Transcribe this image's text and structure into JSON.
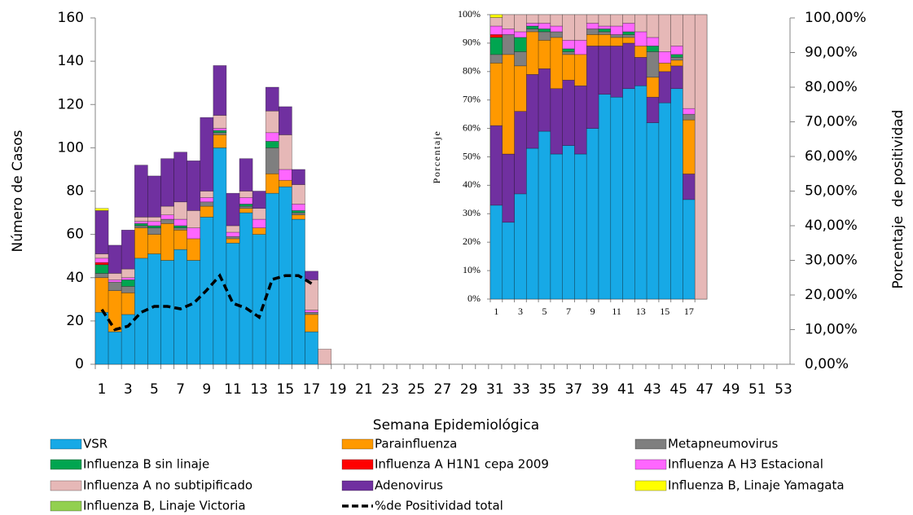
{
  "chart_data": [
    {
      "type": "bar",
      "stacked": true,
      "xlabel": "Semana Epidemiológica",
      "ylabel": "Número de Casos",
      "y2label": "Porcentaje  de positividad",
      "legend": "bottom",
      "categories": [
        1,
        null,
        3,
        null,
        5,
        null,
        7,
        null,
        9,
        null,
        11,
        null,
        13,
        null,
        15,
        null,
        17,
        null,
        19,
        null,
        21,
        null,
        23,
        null,
        25,
        null,
        27,
        null,
        29,
        null,
        31,
        null,
        33,
        null,
        35,
        null,
        37,
        null,
        39,
        null,
        41,
        null,
        43,
        null,
        45,
        null,
        47,
        null,
        49,
        null,
        51,
        null,
        53
      ],
      "ylim": [
        0,
        160
      ],
      "yticks": [
        0,
        20,
        40,
        60,
        80,
        100,
        120,
        140,
        160
      ],
      "y2lim": [
        0,
        100
      ],
      "y2ticks": [
        {
          "value": 0,
          "label": "0,00%"
        },
        {
          "value": 10,
          "label": "10,00%"
        },
        {
          "value": 20,
          "label": "20,00%"
        },
        {
          "value": 30,
          "label": "30,00%"
        },
        {
          "value": 40,
          "label": "40,00%"
        },
        {
          "value": 50,
          "label": "50,00%"
        },
        {
          "value": 60,
          "label": "60,00%"
        },
        {
          "value": 70,
          "label": "70,00%"
        },
        {
          "value": 80,
          "label": "80,00%"
        },
        {
          "value": 90,
          "label": "90,00%"
        },
        {
          "value": 100,
          "label": "100,00%"
        }
      ],
      "series": [
        {
          "name": "VSR",
          "color": "#17a9e6",
          "values": [
            24,
            15,
            23,
            49,
            51,
            48,
            53,
            48,
            68,
            100,
            56,
            70,
            60,
            79,
            82,
            67,
            15,
            0,
            null,
            null,
            null,
            null,
            null,
            null,
            null,
            null,
            null,
            null,
            null,
            null,
            null,
            null,
            null,
            null,
            null,
            null,
            null,
            null,
            null,
            null,
            null,
            null,
            null,
            null,
            null,
            null,
            null,
            null,
            null,
            null,
            null,
            null,
            null
          ]
        },
        {
          "name": "Parainfluenza",
          "color": "#ff9900",
          "values": [
            16,
            19,
            10,
            14,
            9,
            17,
            9,
            10,
            5,
            6,
            2,
            2,
            3,
            9,
            3,
            2,
            8,
            0,
            null,
            null,
            null,
            null,
            null,
            null,
            null,
            null,
            null,
            null,
            null,
            null,
            null,
            null,
            null,
            null,
            null,
            null,
            null,
            null,
            null,
            null,
            null,
            null,
            null,
            null,
            null,
            null,
            null,
            null,
            null,
            null,
            null,
            null,
            null
          ]
        },
        {
          "name": "Metapneumovirus",
          "color": "#7f7f7f",
          "values": [
            2,
            4,
            3,
            1,
            3,
            2,
            1,
            0,
            2,
            1,
            1,
            1,
            0,
            12,
            0,
            1,
            1,
            0,
            null,
            null,
            null,
            null,
            null,
            null,
            null,
            null,
            null,
            null,
            null,
            null,
            null,
            null,
            null,
            null,
            null,
            null,
            null,
            null,
            null,
            null,
            null,
            null,
            null,
            null,
            null,
            null,
            null,
            null,
            null,
            null,
            null,
            null,
            null
          ]
        },
        {
          "name": "Influenza B sin linaje",
          "color": "#00a550",
          "values": [
            4,
            0,
            3,
            1,
            1,
            0,
            1,
            0,
            0,
            1,
            0,
            1,
            0,
            3,
            0,
            1,
            0,
            0,
            null,
            null,
            null,
            null,
            null,
            null,
            null,
            null,
            null,
            null,
            null,
            null,
            null,
            null,
            null,
            null,
            null,
            null,
            null,
            null,
            null,
            null,
            null,
            null,
            null,
            null,
            null,
            null,
            null,
            null,
            null,
            null,
            null,
            null,
            null
          ]
        },
        {
          "name": "Influenza A H1N1 cepa 2009",
          "color": "#ff0000",
          "values": [
            1,
            0,
            0,
            0,
            0,
            0,
            0,
            0,
            0,
            0,
            0,
            0,
            0,
            0,
            0,
            0,
            0,
            0,
            null,
            null,
            null,
            null,
            null,
            null,
            null,
            null,
            null,
            null,
            null,
            null,
            null,
            null,
            null,
            null,
            null,
            null,
            null,
            null,
            null,
            null,
            null,
            null,
            null,
            null,
            null,
            null,
            null,
            null,
            null,
            null,
            null,
            null,
            null
          ]
        },
        {
          "name": "Influenza A H3 Estacional",
          "color": "#ff66ff",
          "values": [
            2,
            1,
            1,
            1,
            2,
            2,
            3,
            5,
            2,
            1,
            2,
            3,
            4,
            4,
            5,
            3,
            1,
            0,
            null,
            null,
            null,
            null,
            null,
            null,
            null,
            null,
            null,
            null,
            null,
            null,
            null,
            null,
            null,
            null,
            null,
            null,
            null,
            null,
            null,
            null,
            null,
            null,
            null,
            null,
            null,
            null,
            null,
            null,
            null,
            null,
            null,
            null,
            null
          ]
        },
        {
          "name": "Influenza A no subtipificado",
          "color": "#e6b8b7",
          "values": [
            2,
            3,
            4,
            2,
            2,
            4,
            8,
            8,
            3,
            6,
            3,
            3,
            5,
            10,
            16,
            9,
            14,
            7,
            null,
            null,
            null,
            null,
            null,
            null,
            null,
            null,
            null,
            null,
            null,
            null,
            null,
            null,
            null,
            null,
            null,
            null,
            null,
            null,
            null,
            null,
            null,
            null,
            null,
            null,
            null,
            null,
            null,
            null,
            null,
            null,
            null,
            null,
            null
          ]
        },
        {
          "name": "Adenovirus",
          "color": "#7030a0",
          "values": [
            20,
            13,
            18,
            24,
            19,
            22,
            23,
            23,
            34,
            23,
            15,
            15,
            8,
            11,
            13,
            7,
            4,
            0,
            null,
            null,
            null,
            null,
            null,
            null,
            null,
            null,
            null,
            null,
            null,
            null,
            null,
            null,
            null,
            null,
            null,
            null,
            null,
            null,
            null,
            null,
            null,
            null,
            null,
            null,
            null,
            null,
            null,
            null,
            null,
            null,
            null,
            null,
            null
          ]
        },
        {
          "name": "Influenza B, Linaje Yamagata",
          "color": "#ffff00",
          "values": [
            1,
            0,
            0,
            0,
            0,
            0,
            0,
            0,
            0,
            0,
            0,
            0,
            0,
            0,
            0,
            0,
            0,
            0,
            null,
            null,
            null,
            null,
            null,
            null,
            null,
            null,
            null,
            null,
            null,
            null,
            null,
            null,
            null,
            null,
            null,
            null,
            null,
            null,
            null,
            null,
            null,
            null,
            null,
            null,
            null,
            null,
            null,
            null,
            null,
            null,
            null,
            null,
            null
          ]
        },
        {
          "name": "Influenza B, Linaje Victoria",
          "color": "#92d050",
          "values": [
            0,
            0,
            0,
            0,
            0,
            0,
            0,
            0,
            0,
            0,
            0,
            0,
            0,
            0,
            0,
            0,
            0,
            0,
            null,
            null,
            null,
            null,
            null,
            null,
            null,
            null,
            null,
            null,
            null,
            null,
            null,
            null,
            null,
            null,
            null,
            null,
            null,
            null,
            null,
            null,
            null,
            null,
            null,
            null,
            null,
            null,
            null,
            null,
            null,
            null,
            null,
            null,
            null
          ]
        },
        {
          "name": "%de Positividad total",
          "type": "line",
          "axis": "y2",
          "line_style": "dashed",
          "color": "#000000",
          "values": [
            15.8,
            10,
            11,
            15,
            16.7,
            16.7,
            16,
            17.6,
            21.4,
            25.6,
            17.6,
            16.2,
            13.6,
            24.5,
            25.6,
            25.6,
            23.3,
            null,
            null,
            null,
            null,
            null,
            null,
            null,
            null,
            null,
            null,
            null,
            null,
            null,
            null,
            null,
            null,
            null,
            null,
            null,
            null,
            null,
            null,
            null,
            null,
            null,
            null,
            null,
            null,
            null,
            null,
            null,
            null,
            null,
            null,
            null,
            null
          ]
        }
      ]
    },
    {
      "type": "bar",
      "stacked": true,
      "ylabel": "Porcentaje",
      "categories": [
        1,
        null,
        3,
        null,
        5,
        null,
        7,
        null,
        9,
        null,
        11,
        null,
        13,
        null,
        15,
        null,
        17,
        null
      ],
      "ylim": [
        0,
        100
      ],
      "yticks": [
        {
          "value": 0,
          "label": "0%"
        },
        {
          "value": 10,
          "label": "10%"
        },
        {
          "value": 20,
          "label": "20%"
        },
        {
          "value": 30,
          "label": "30%"
        },
        {
          "value": 40,
          "label": "40%"
        },
        {
          "value": 50,
          "label": "50%"
        },
        {
          "value": 60,
          "label": "60%"
        },
        {
          "value": 70,
          "label": "70%"
        },
        {
          "value": 80,
          "label": "80%"
        },
        {
          "value": 90,
          "label": "90%"
        },
        {
          "value": 100,
          "label": "100%"
        }
      ],
      "series": [
        {
          "color": "#17a9e6",
          "values": [
            33,
            27,
            37,
            53,
            59,
            51,
            54,
            51,
            60,
            72,
            71,
            74,
            75,
            62,
            69,
            74,
            35,
            0
          ]
        },
        {
          "color": "#7030a0",
          "values": [
            28,
            24,
            29,
            26,
            22,
            23,
            23,
            24,
            29,
            17,
            18,
            16,
            10,
            9,
            11,
            8,
            9,
            0
          ]
        },
        {
          "color": "#ff9900",
          "values": [
            22,
            35,
            16,
            15,
            10,
            18,
            9,
            11,
            4,
            4,
            3,
            2,
            4,
            7,
            3,
            2,
            19,
            0
          ]
        },
        {
          "color": "#7f7f7f",
          "values": [
            3,
            7,
            5,
            1,
            3,
            2,
            1,
            0,
            2,
            1,
            1,
            1,
            0,
            9,
            0,
            1,
            2,
            0
          ]
        },
        {
          "color": "#00a550",
          "values": [
            6,
            0,
            5,
            1,
            1,
            0,
            1,
            0,
            0,
            1,
            0,
            1,
            0,
            2,
            0,
            1,
            0,
            0
          ]
        },
        {
          "color": "#ff0000",
          "values": [
            1,
            0,
            0,
            0,
            0,
            0,
            0,
            0,
            0,
            0,
            0,
            0,
            0,
            0,
            0,
            0,
            0,
            0
          ]
        },
        {
          "color": "#ff66ff",
          "values": [
            3,
            2,
            2,
            1,
            2,
            2,
            3,
            5,
            2,
            1,
            3,
            3,
            5,
            3,
            4,
            3,
            2,
            0
          ]
        },
        {
          "color": "#e6b8b7",
          "values": [
            3,
            5,
            6,
            3,
            3,
            4,
            9,
            9,
            3,
            4,
            4,
            3,
            6,
            8,
            13,
            11,
            33,
            100
          ]
        },
        {
          "color": "#ffff00",
          "values": [
            1,
            0,
            0,
            0,
            0,
            0,
            0,
            0,
            0,
            0,
            0,
            0,
            0,
            0,
            0,
            0,
            0,
            0
          ]
        },
        {
          "color": "#92d050",
          "values": [
            0,
            0,
            0,
            0,
            0,
            0,
            0,
            0,
            0,
            0,
            0,
            0,
            0,
            0,
            0,
            0,
            0,
            0
          ]
        }
      ]
    }
  ]
}
